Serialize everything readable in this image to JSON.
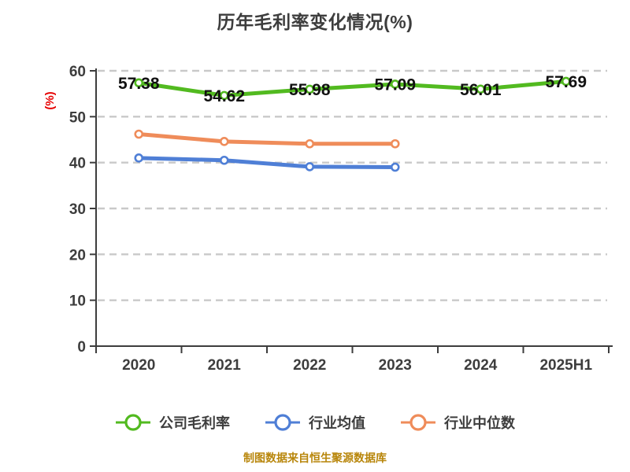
{
  "chart_data": {
    "type": "line",
    "title": "历年毛利率变化情况(%)",
    "ylabel": "(%)",
    "source_note": "制图数据来自恒生聚源数据库",
    "categories": [
      "2020",
      "2021",
      "2022",
      "2023",
      "2024",
      "2025H1"
    ],
    "series": [
      {
        "name": "公司毛利率",
        "key": "company-gross-margin",
        "color": "#52ba20",
        "values": [
          57.38,
          54.62,
          55.98,
          57.09,
          56.01,
          57.69
        ],
        "show_labels": true
      },
      {
        "name": "行业均值",
        "key": "industry-mean",
        "color": "#4f7fd6",
        "values": [
          41.0,
          40.5,
          39.1,
          39.0,
          null,
          null
        ],
        "show_labels": false
      },
      {
        "name": "行业中位数",
        "key": "industry-median",
        "color": "#ef8c5a",
        "values": [
          46.2,
          44.6,
          44.1,
          44.1,
          null,
          null
        ],
        "show_labels": false
      }
    ],
    "ylim": [
      0,
      60
    ],
    "yticks": [
      0,
      10,
      20,
      30,
      40,
      50,
      60
    ],
    "grid": true,
    "grid_style": "dashed",
    "legend_position": "bottom",
    "colors": {
      "title": "#3d3d3d",
      "axis": "#3d3d3d",
      "grid": "#c9c9c9",
      "tick_text": "#3d3d3d",
      "label_text": "#111111",
      "ylabel": "#e60000",
      "source_note": "#b8860b",
      "marker_fill": "#ffffff"
    }
  }
}
